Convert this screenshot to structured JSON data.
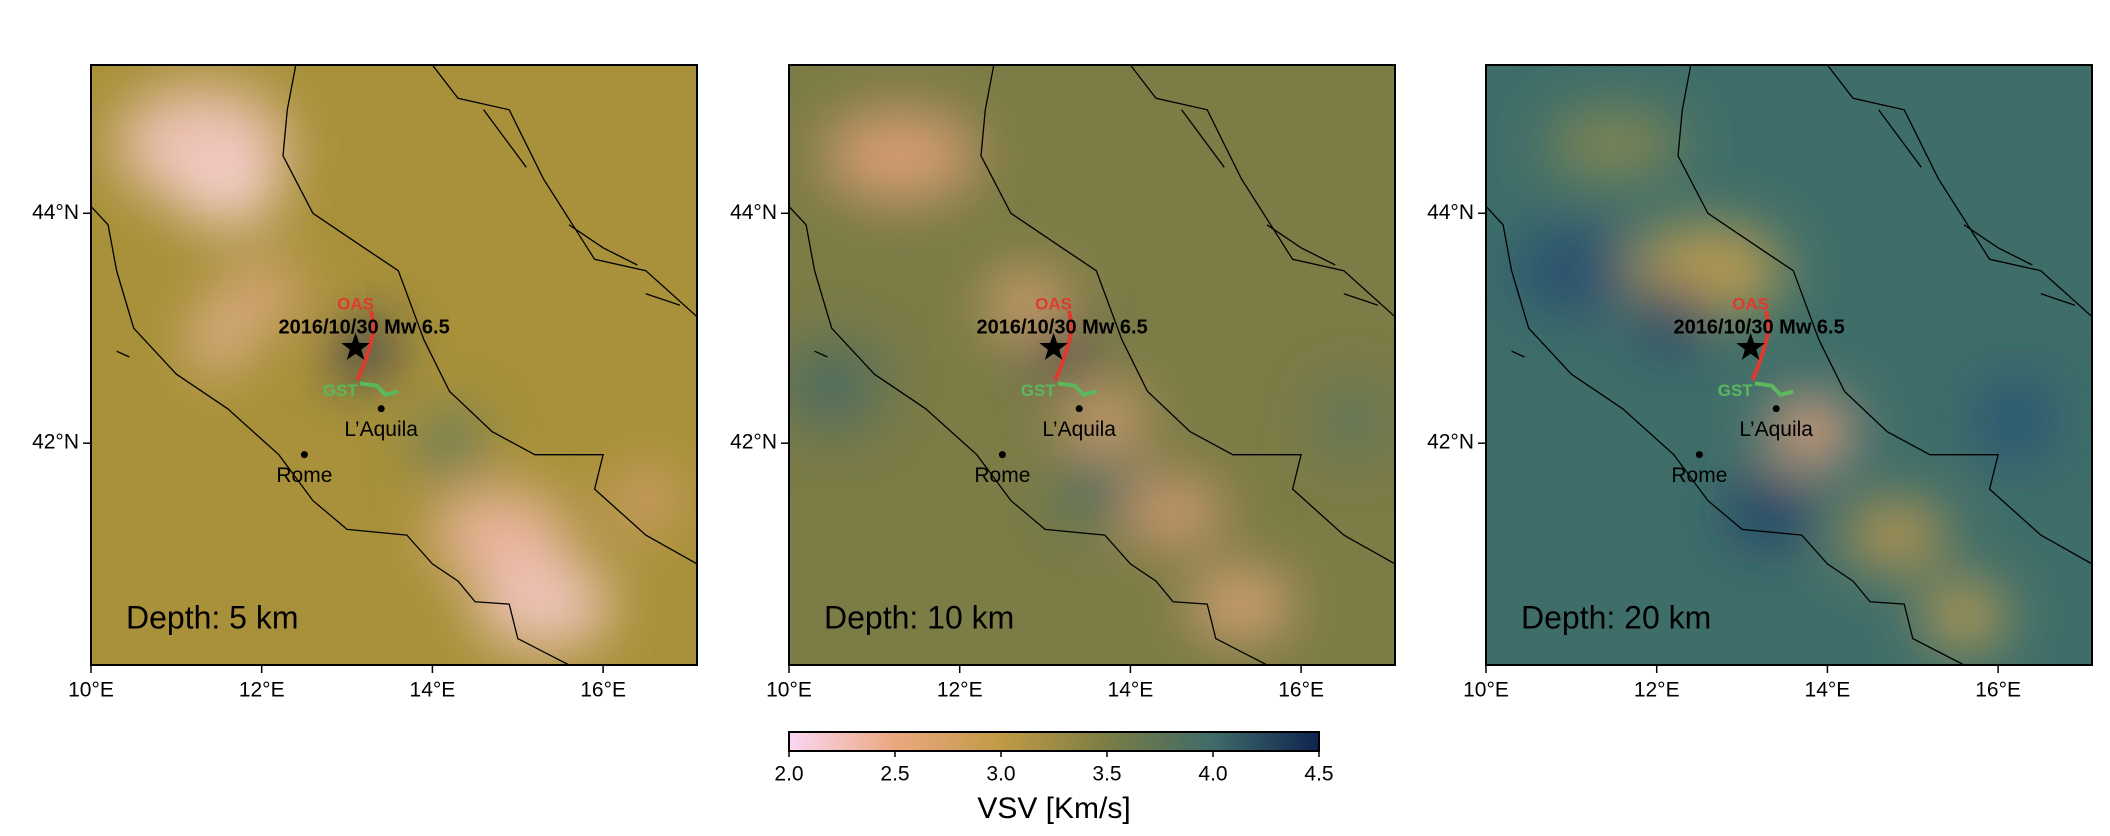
{
  "map": {
    "lonlim": [
      10,
      17.1
    ],
    "latlim": [
      40.07,
      45.29
    ],
    "xticks": [
      {
        "value": 10,
        "label": "10°E"
      },
      {
        "value": 12,
        "label": "12°E"
      },
      {
        "value": 14,
        "label": "14°E"
      },
      {
        "value": 16,
        "label": "16°E"
      }
    ],
    "yticks": [
      {
        "value": 42,
        "label": "42°N"
      },
      {
        "value": 44,
        "label": "44°N"
      }
    ],
    "panels": [
      {
        "label": "Depth: 5 km"
      },
      {
        "label": "Depth: 10 km"
      },
      {
        "label": "Depth: 20 km"
      }
    ],
    "event": {
      "label": "2016/10/30 Mw 6.5",
      "lon": 13.1,
      "lat": 42.83
    },
    "faults": [
      {
        "name": "OAS",
        "color": "#e03a2f"
      },
      {
        "name": "GST",
        "color": "#5cb85c"
      }
    ],
    "cities": [
      {
        "name": "L’Aquila",
        "lon": 13.4,
        "lat": 42.3
      },
      {
        "name": "Rome",
        "lon": 12.5,
        "lat": 41.9
      }
    ]
  },
  "colorbar": {
    "label": "VSV [Km/s]",
    "lim": [
      2,
      4.5
    ],
    "ticks": [
      {
        "value": 2,
        "label": "2.0"
      },
      {
        "value": 2.5,
        "label": "2.5"
      },
      {
        "value": 3,
        "label": "3.0"
      },
      {
        "value": 3.5,
        "label": "3.5"
      },
      {
        "value": 4,
        "label": "4.0"
      },
      {
        "value": 4.5,
        "label": "4.5"
      }
    ]
  }
}
